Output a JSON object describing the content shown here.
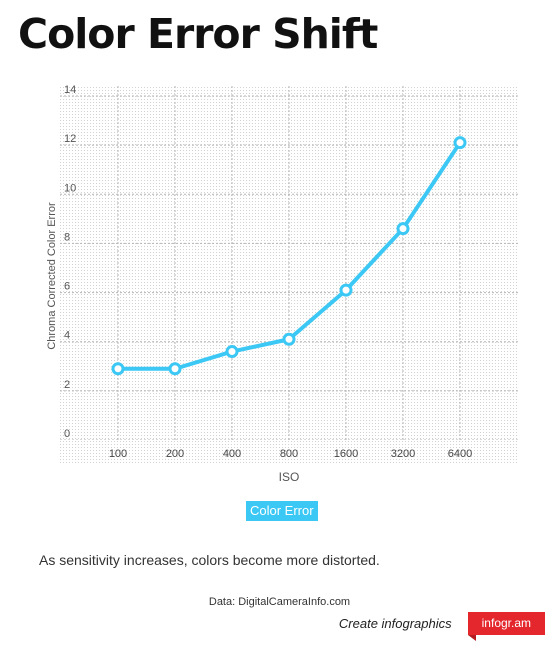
{
  "title": "Color Error Shift",
  "chart_data": {
    "type": "line",
    "categories": [
      "100",
      "200",
      "400",
      "800",
      "1600",
      "3200",
      "6400"
    ],
    "series": [
      {
        "name": "Color Error",
        "values": [
          2.9,
          2.9,
          3.6,
          4.1,
          6.1,
          8.6,
          12.1
        ],
        "color": "#3cc8f5"
      }
    ],
    "xlabel": "ISO",
    "ylabel": "Chroma Corrected Color Error",
    "ylim": [
      0,
      14
    ],
    "yticks": [
      "0",
      "2",
      "4",
      "6",
      "8",
      "10",
      "12",
      "14"
    ],
    "grid": true,
    "legend_position": "bottom-center"
  },
  "caption": "As sensitivity increases, colors become more distorted.",
  "source": "Data: DigitalCameraInfo.com",
  "footer": {
    "create_label": "Create infographics",
    "brand_label": "infogr.am",
    "brand_color": "#e4272c"
  },
  "colors": {
    "line": "#3cc8f5",
    "grid": "#b5b5b5"
  }
}
